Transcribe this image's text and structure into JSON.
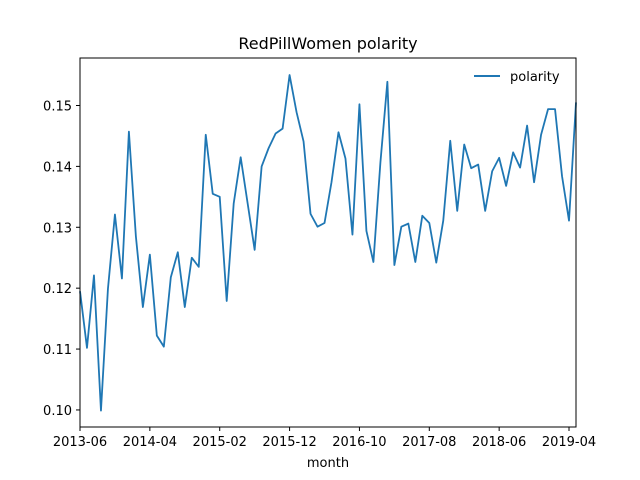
{
  "chart_data": {
    "type": "line",
    "title": "RedPillWomen polarity",
    "xlabel": "month",
    "ylabel": "",
    "x_tick_labels": [
      "2013-06",
      "2014-04",
      "2015-02",
      "2015-12",
      "2016-10",
      "2017-08",
      "2018-06",
      "2019-04"
    ],
    "y_ticks": [
      0.1,
      0.11,
      0.12,
      0.13,
      0.14,
      0.15
    ],
    "y_tick_labels": [
      "0.10",
      "0.11",
      "0.12",
      "0.13",
      "0.14",
      "0.15"
    ],
    "ylim": [
      0.0972,
      0.1578
    ],
    "xlim": [
      "2013-06",
      "2019-05"
    ],
    "grid": false,
    "legend_position": "upper right",
    "series": [
      {
        "name": "polarity",
        "color": "#1f77b4",
        "x": [
          "2013-06",
          "2013-07",
          "2013-08",
          "2013-09",
          "2013-10",
          "2013-11",
          "2013-12",
          "2014-01",
          "2014-02",
          "2014-03",
          "2014-04",
          "2014-05",
          "2014-06",
          "2014-07",
          "2014-08",
          "2014-09",
          "2014-10",
          "2014-11",
          "2014-12",
          "2015-01",
          "2015-02",
          "2015-03",
          "2015-04",
          "2015-05",
          "2015-06",
          "2015-07",
          "2015-08",
          "2015-09",
          "2015-10",
          "2015-11",
          "2015-12",
          "2016-01",
          "2016-02",
          "2016-03",
          "2016-04",
          "2016-05",
          "2016-06",
          "2016-07",
          "2016-08",
          "2016-09",
          "2016-10",
          "2016-11",
          "2016-12",
          "2017-01",
          "2017-02",
          "2017-03",
          "2017-04",
          "2017-05",
          "2017-06",
          "2017-07",
          "2017-08",
          "2017-09",
          "2017-10",
          "2017-11",
          "2017-12",
          "2018-01",
          "2018-02",
          "2018-03",
          "2018-04",
          "2018-05",
          "2018-06",
          "2018-07",
          "2018-08",
          "2018-09",
          "2018-10",
          "2018-11",
          "2018-12",
          "2019-01",
          "2019-02",
          "2019-03",
          "2019-04",
          "2019-05"
        ],
        "values": [
          0.1195,
          0.1102,
          0.1221,
          0.0999,
          0.1199,
          0.1321,
          0.1216,
          0.1457,
          0.1285,
          0.1169,
          0.1255,
          0.1122,
          0.1104,
          0.1218,
          0.1259,
          0.1169,
          0.125,
          0.1235,
          0.1452,
          0.1355,
          0.135,
          0.1179,
          0.1339,
          0.1415,
          0.1339,
          0.1263,
          0.14,
          0.143,
          0.1454,
          0.1462,
          0.155,
          0.1489,
          0.1441,
          0.1322,
          0.1301,
          0.1307,
          0.1374,
          0.1456,
          0.1413,
          0.1288,
          0.1502,
          0.1294,
          0.1243,
          0.1406,
          0.1539,
          0.1238,
          0.1301,
          0.1306,
          0.1243,
          0.1319,
          0.1307,
          0.1242,
          0.1311,
          0.1442,
          0.1327,
          0.1436,
          0.1397,
          0.1403,
          0.1327,
          0.1392,
          0.1414,
          0.1368,
          0.1423,
          0.1398,
          0.1467,
          0.1374,
          0.1452,
          0.1494,
          0.1494,
          0.1384,
          0.1311,
          0.1505
        ]
      }
    ]
  }
}
